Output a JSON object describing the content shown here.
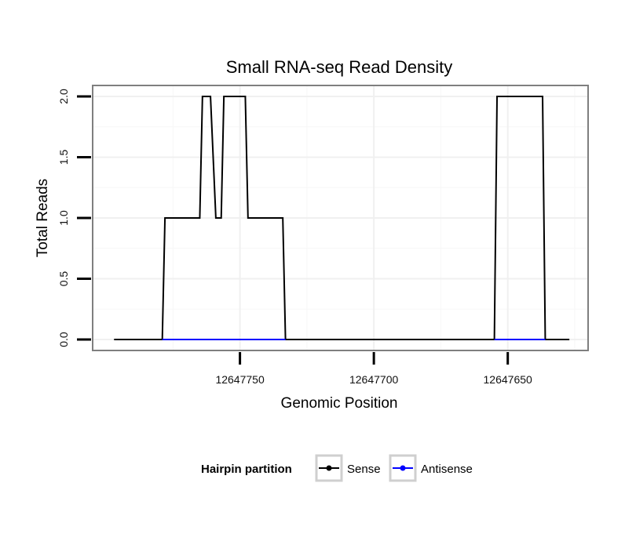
{
  "chart_data": {
    "type": "line",
    "title": "Small RNA-seq Read Density",
    "xlabel": "Genomic Position",
    "ylabel": "Total Reads",
    "x_reversed": true,
    "xlim": [
      12647805,
      12647620
    ],
    "ylim": [
      -0.09,
      2.09
    ],
    "x_ticks": [
      12647750,
      12647700,
      12647650
    ],
    "x_tick_labels": [
      "12647750",
      "12647700",
      "12647650"
    ],
    "y_ticks": [
      0.0,
      0.5,
      1.0,
      1.5,
      2.0
    ],
    "y_tick_labels": [
      "0.0",
      "0.5",
      "1.0",
      "1.5",
      "2.0"
    ],
    "grid": true,
    "legend": {
      "title": "Hairpin partition",
      "position": "bottom",
      "entries": [
        {
          "name": "Sense",
          "color": "#000000"
        },
        {
          "name": "Antisense",
          "color": "#0000ff"
        }
      ]
    },
    "series": [
      {
        "name": "Sense",
        "color": "#000000",
        "x": [
          12647797,
          12647779,
          12647778,
          12647765,
          12647764,
          12647761,
          12647759,
          12647757,
          12647756,
          12647748,
          12647747,
          12647734,
          12647733,
          12647719,
          12647718,
          12647655,
          12647654,
          12647637,
          12647636,
          12647627
        ],
        "y": [
          0,
          0,
          1,
          1,
          2,
          2,
          1,
          1,
          2,
          2,
          1,
          1,
          0,
          0,
          0,
          0,
          2,
          2,
          0,
          0
        ]
      },
      {
        "name": "Antisense",
        "color": "#0000ff",
        "x": [
          12647779,
          12647733,
          12647655,
          12647636
        ],
        "y": [
          0,
          0,
          0,
          0
        ],
        "segments": [
          [
            12647779,
            12647733
          ],
          [
            12647655,
            12647636
          ]
        ]
      }
    ]
  }
}
